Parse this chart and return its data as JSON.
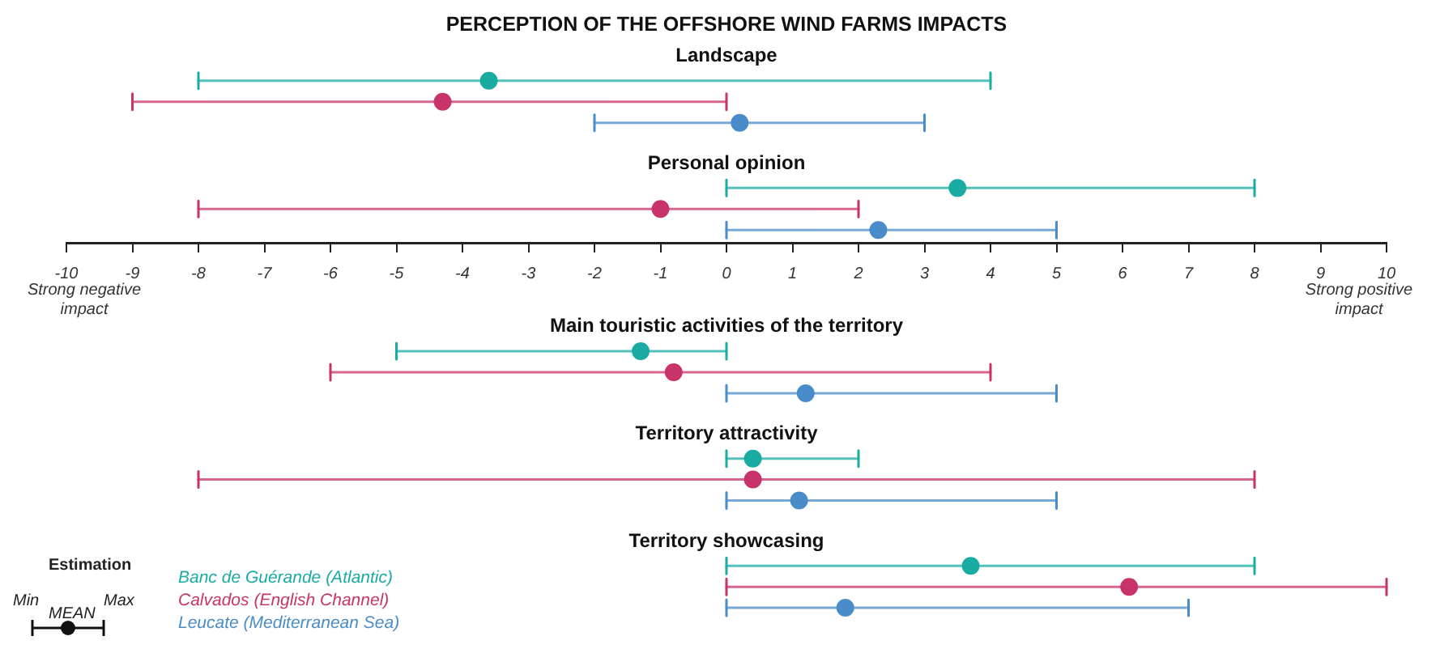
{
  "chart_data": {
    "type": "scatter",
    "orientation": "horizontal",
    "title": "PERCEPTION OF THE OFFSHORE WIND FARMS IMPACTS",
    "categories": [
      "Landscape",
      "Personal opinion",
      "Main touristic activities of the territory",
      "Territory attractivity",
      "Territory showcasing"
    ],
    "series": [
      {
        "name": "Banc de Guérande (Atlantic)",
        "color": "#1aaba3",
        "values": [
          -3.6,
          3.5,
          -1.3,
          0.4,
          3.7
        ],
        "errors": [
          [
            -8,
            4
          ],
          [
            0,
            8
          ],
          [
            -5,
            0
          ],
          [
            0,
            2
          ],
          [
            0,
            8
          ]
        ]
      },
      {
        "name": "Calvados (English Channel)",
        "color": "#c8336a",
        "values": [
          -4.3,
          -1.0,
          -0.8,
          0.4,
          6.1
        ],
        "errors": [
          [
            -9,
            0
          ],
          [
            -8,
            2
          ],
          [
            -6,
            4
          ],
          [
            -8,
            8
          ],
          [
            0,
            10
          ]
        ]
      },
      {
        "name": "Leucate (Mediterranean Sea)",
        "color": "#4a8cc9",
        "values": [
          0.2,
          2.3,
          1.2,
          1.1,
          1.8
        ],
        "errors": [
          [
            -2,
            3
          ],
          [
            0,
            5
          ],
          [
            0,
            5
          ],
          [
            0,
            5
          ],
          [
            0,
            7
          ]
        ]
      }
    ],
    "xlim": [
      -10,
      10
    ],
    "xticks": [
      -10,
      -9,
      -8,
      -7,
      -6,
      -5,
      -4,
      -3,
      -2,
      -1,
      0,
      1,
      2,
      3,
      4,
      5,
      6,
      7,
      8,
      9,
      10
    ],
    "marker": "circle",
    "legend": "bottom left",
    "annotations": [
      "Strong negative impact",
      "Strong positive impact",
      "Estimation",
      "Min",
      "MEAN",
      "Max"
    ]
  }
}
